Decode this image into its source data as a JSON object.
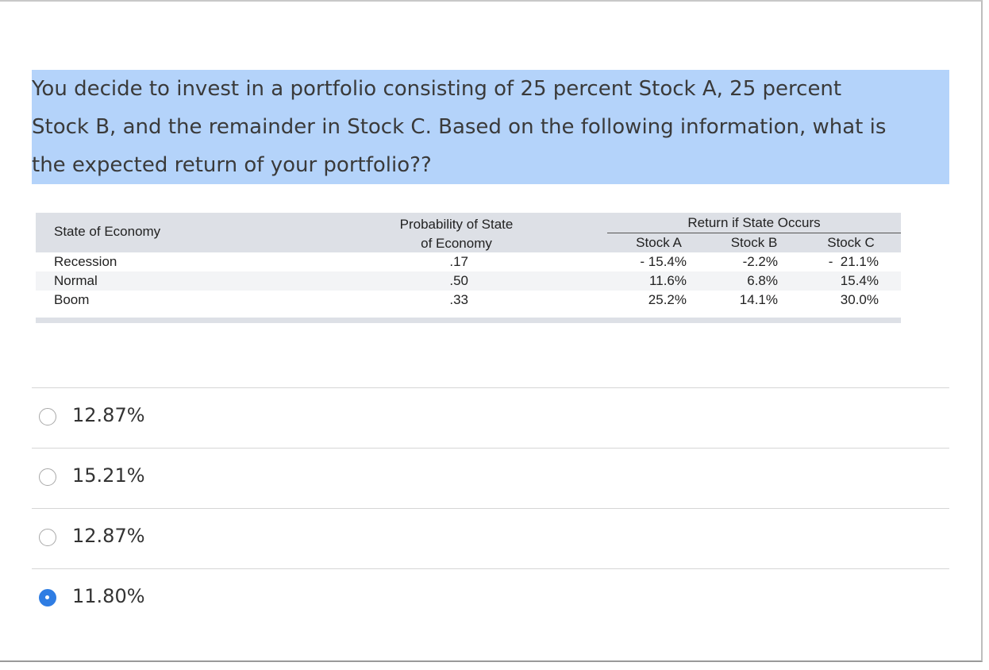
{
  "question": {
    "text": "You decide to invest in a portfolio consisting of 25 percent Stock A, 25 percent\nStock B, and the remainder in Stock C. Based on the following information, what is\nthe expected return of your portfolio??"
  },
  "table": {
    "headers": {
      "state": "State of Economy",
      "probability": "Probability of State\nof Economy",
      "group": "Return if State Occurs",
      "stock_a": "Stock A",
      "stock_b": "Stock B",
      "stock_c": "Stock C"
    },
    "rows": [
      {
        "state": "Recession",
        "probability": ".17",
        "a": "- 15.4%",
        "b": "-2.2%",
        "c": "-  21.1%"
      },
      {
        "state": "Normal",
        "probability": ".50",
        "a": "11.6%",
        "b": "6.8%",
        "c": "15.4%"
      },
      {
        "state": "Boom",
        "probability": ".33",
        "a": "25.2%",
        "b": "14.1%",
        "c": "30.0%"
      }
    ]
  },
  "answers": [
    {
      "label": "12.87%",
      "selected": false
    },
    {
      "label": "15.21%",
      "selected": false
    },
    {
      "label": "12.87%",
      "selected": false
    },
    {
      "label": "11.80%",
      "selected": true
    }
  ],
  "colors": {
    "highlight": "#b4d3fa",
    "radio_selected": "#2f7de3"
  }
}
